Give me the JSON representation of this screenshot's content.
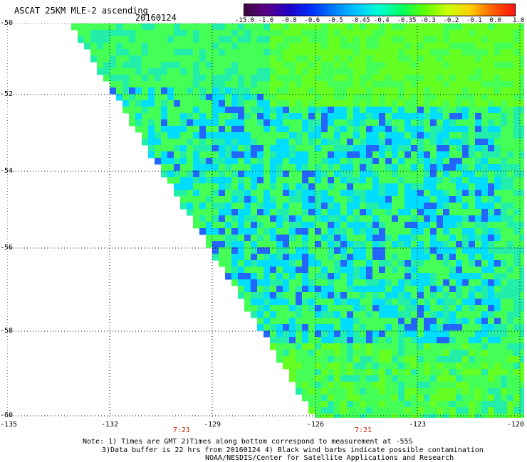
{
  "header": {
    "title": "ASCAT 25KM MLE-2 ascending",
    "date": "20160124"
  },
  "colorbar": {
    "labels": [
      "-15.0",
      "-1.0",
      "-0.8",
      "-0.6",
      "-0.5",
      "-0.45",
      "-0.4",
      "-0.35",
      "-0.3",
      "-0.2",
      "-0.1",
      "0.0",
      "1.0"
    ],
    "colors": [
      "#3a0a3a",
      "#5a008a",
      "#2000c8",
      "#0030ff",
      "#0080ff",
      "#00c8ff",
      "#00ffd0",
      "#00ff60",
      "#60ff00",
      "#c8ff00",
      "#ffd000",
      "#ff6000",
      "#ff1010"
    ]
  },
  "map": {
    "lat_labels": [
      "-50",
      "-52",
      "-54",
      "-56",
      "-58",
      "-60"
    ],
    "lon_labels": [
      "-135",
      "-132",
      "-129",
      "-126",
      "-123",
      "-120"
    ],
    "times": [
      "7:21",
      "7:21"
    ],
    "dominant_colors": [
      "#44ff55",
      "#22eeaa",
      "#00ddff",
      "#2266ff",
      "#66ff22"
    ]
  },
  "notes": {
    "line1": "Note: 1) Times are GMT 2)Times along bottom correspond to measurement at -55S",
    "line2": "3)Data buffer is 22 hrs from 20160124 4) Black wind barbs indicate possible contamination",
    "line3": "NOAA/NESDIS/Center for Satellite Applications and Research"
  }
}
